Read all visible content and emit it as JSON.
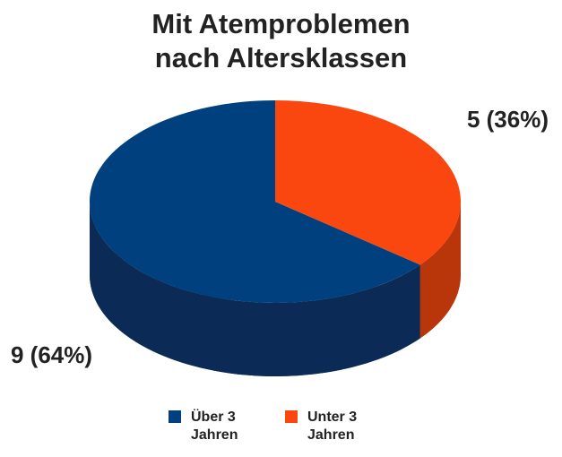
{
  "chart_data": {
    "type": "pie",
    "title": "Mit Atemproblemen nach Altersklassen",
    "categories": [
      "Über 3 Jahren",
      "Unter 3 Jahren"
    ],
    "values": [
      9,
      5
    ],
    "value_labels": [
      "9 (64%)",
      "5 (36%)"
    ],
    "colors": [
      "#00407f",
      "#fa4710"
    ],
    "side_colors": [
      "#0b2a55",
      "#b8360a"
    ],
    "legend": "bottom"
  }
}
